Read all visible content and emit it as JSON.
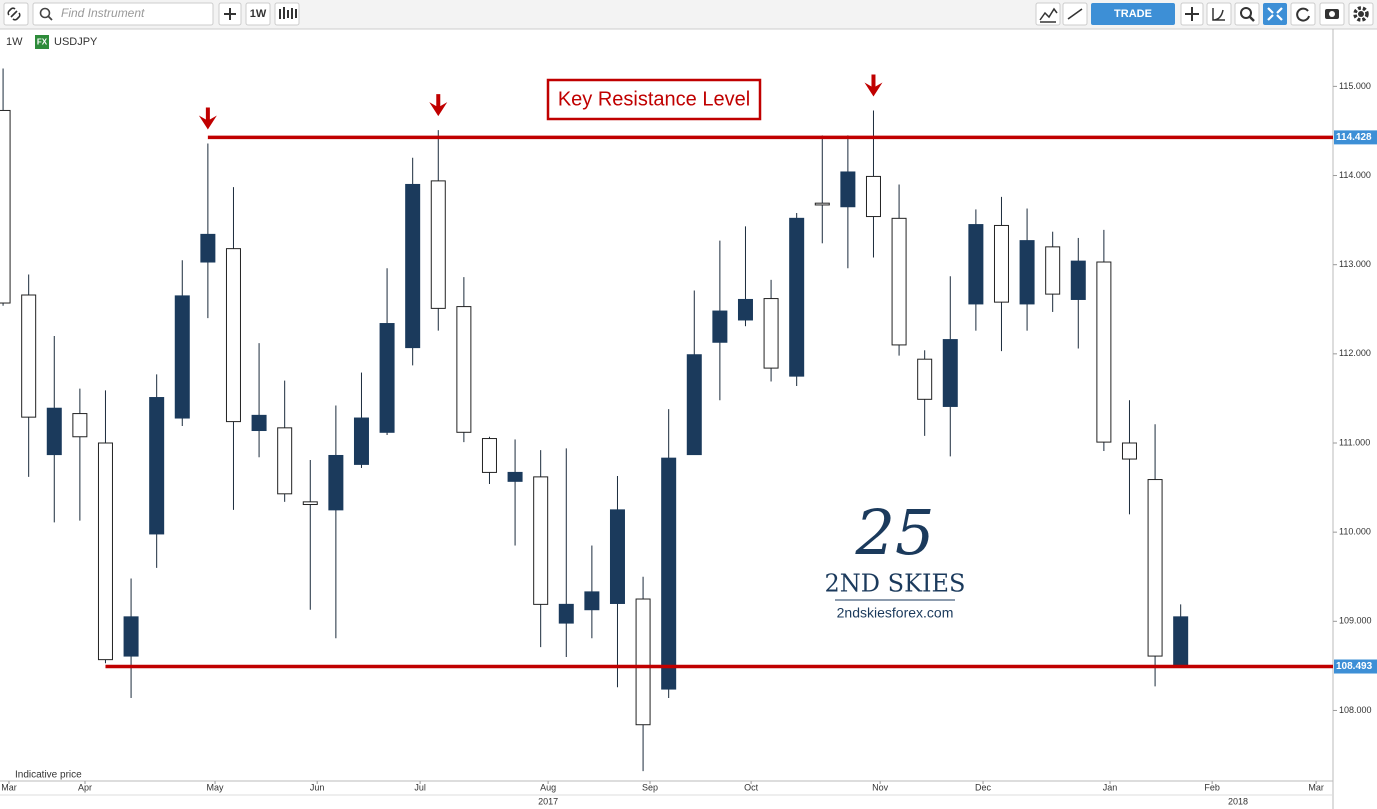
{
  "toolbar": {
    "search_placeholder": "Find Instrument",
    "interval_button": "1W",
    "trade_button": "TRADE"
  },
  "header": {
    "interval": "1W",
    "badge": "FX",
    "symbol": "USDJPY"
  },
  "footer_note": "Indicative price",
  "watermark": {
    "mark": "25",
    "name": "2ND SKIES",
    "url": "2ndskiesforex.com"
  },
  "chart_data": {
    "type": "candlestick",
    "x": [
      0,
      1,
      2,
      3,
      4,
      5,
      6,
      7,
      8,
      9,
      10,
      11,
      12,
      13,
      14,
      15,
      16,
      17,
      18,
      19,
      20,
      21,
      22,
      23,
      24,
      25,
      26,
      27,
      28,
      29,
      30,
      31,
      32,
      33,
      34,
      35,
      36,
      37,
      38,
      39,
      40,
      41,
      42,
      43,
      44,
      45,
      46
    ],
    "open": [
      114.73,
      112.66,
      110.87,
      111.33,
      111.0,
      108.61,
      109.98,
      111.28,
      113.03,
      113.18,
      111.14,
      111.17,
      110.34,
      110.25,
      110.76,
      111.12,
      112.07,
      113.94,
      112.53,
      111.05,
      110.57,
      110.62,
      108.98,
      109.13,
      109.2,
      109.25,
      108.24,
      110.87,
      112.13,
      112.38,
      112.62,
      111.75,
      113.69,
      113.65,
      113.99,
      113.52,
      111.94,
      111.41,
      112.56,
      113.44,
      112.56,
      113.2,
      112.61,
      113.03,
      111.0,
      110.59,
      108.51
    ],
    "high": [
      115.2,
      112.89,
      112.2,
      111.61,
      111.59,
      109.48,
      111.77,
      113.05,
      114.36,
      113.87,
      112.12,
      111.7,
      110.81,
      111.42,
      111.79,
      112.96,
      114.2,
      114.51,
      112.86,
      111.07,
      111.04,
      110.92,
      110.94,
      109.85,
      110.63,
      109.5,
      111.38,
      112.71,
      113.27,
      113.43,
      112.83,
      113.58,
      114.45,
      114.45,
      114.73,
      113.9,
      112.04,
      112.87,
      113.62,
      113.76,
      113.63,
      113.37,
      113.3,
      113.39,
      111.48,
      111.21,
      109.19
    ],
    "low": [
      112.54,
      110.62,
      110.11,
      110.13,
      108.53,
      108.14,
      109.6,
      111.19,
      112.4,
      110.25,
      110.84,
      110.34,
      109.13,
      108.81,
      110.72,
      111.09,
      111.87,
      112.26,
      111.01,
      110.54,
      109.85,
      108.71,
      108.6,
      108.81,
      108.26,
      107.32,
      108.14,
      110.87,
      111.48,
      112.31,
      111.69,
      111.64,
      113.24,
      112.96,
      113.08,
      111.98,
      111.08,
      110.85,
      112.26,
      112.03,
      112.26,
      112.47,
      112.06,
      110.91,
      110.2,
      108.27,
      108.51
    ],
    "close": [
      112.57,
      111.29,
      111.39,
      111.07,
      108.57,
      109.05,
      111.51,
      112.65,
      113.34,
      111.24,
      111.31,
      110.43,
      110.31,
      110.86,
      111.28,
      112.34,
      113.9,
      112.51,
      111.12,
      110.67,
      110.67,
      109.19,
      109.19,
      109.33,
      110.25,
      107.84,
      110.83,
      111.99,
      112.48,
      112.61,
      111.84,
      113.52,
      113.67,
      114.04,
      113.54,
      112.1,
      111.49,
      112.16,
      113.45,
      112.58,
      113.27,
      112.67,
      113.04,
      111.01,
      110.82,
      108.61,
      109.05
    ],
    "up_color": "#1b3a5c",
    "down_color": "#ffffff",
    "xlim": [
      -0.12,
      51.95
    ],
    "ylim": [
      107.22,
      115.61
    ],
    "yticks": [
      {
        "value": 108,
        "label": "108.000"
      },
      {
        "value": 109,
        "label": "109.000"
      },
      {
        "value": 110,
        "label": "110.000"
      },
      {
        "value": 111,
        "label": "111.000"
      },
      {
        "value": 112,
        "label": "112.000"
      },
      {
        "value": 113,
        "label": "113.000"
      },
      {
        "value": 114,
        "label": "114.000"
      },
      {
        "value": 115,
        "label": "115.000"
      }
    ],
    "xticks": [
      {
        "value": 0.23,
        "label": "Mar"
      },
      {
        "value": 3.2,
        "label": "Apr"
      },
      {
        "value": 8.28,
        "label": "May"
      },
      {
        "value": 12.27,
        "label": "Jun"
      },
      {
        "value": 16.29,
        "label": "Jul"
      },
      {
        "value": 21.29,
        "label": "Aug"
      },
      {
        "value": 25.27,
        "label": "Sep"
      },
      {
        "value": 29.22,
        "label": "Oct"
      },
      {
        "value": 34.26,
        "label": "Nov"
      },
      {
        "value": 38.28,
        "label": "Dec"
      },
      {
        "value": 43.24,
        "label": "Jan"
      },
      {
        "value": 47.23,
        "label": "Feb"
      },
      {
        "value": 51.29,
        "label": "Mar"
      }
    ],
    "year_ticks": [
      {
        "value": 21.29,
        "label": "2017"
      },
      {
        "value": 48.24,
        "label": "2018"
      }
    ],
    "levels": [
      {
        "value": 114.428,
        "label": "114.428",
        "from": 8
      },
      {
        "value": 108.493,
        "label": "108.493",
        "from": 4
      }
    ],
    "annotation": "Key Resistance Level",
    "arrow_x": [
      8,
      17,
      34
    ],
    "level_color": "#c00000"
  }
}
